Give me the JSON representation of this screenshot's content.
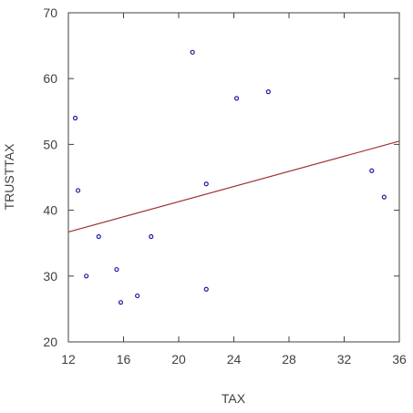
{
  "chart_data": {
    "type": "scatter",
    "title": "",
    "xlabel": "TAX",
    "ylabel": "TRUSTTAX",
    "xlim": [
      12,
      36
    ],
    "ylim": [
      20,
      70
    ],
    "xticks": [
      12,
      16,
      20,
      24,
      28,
      32,
      36
    ],
    "yticks": [
      20,
      30,
      40,
      50,
      60,
      70
    ],
    "grid": false,
    "legend": "none",
    "points": [
      {
        "x": 12.5,
        "y": 54
      },
      {
        "x": 12.7,
        "y": 43
      },
      {
        "x": 13.3,
        "y": 30
      },
      {
        "x": 14.2,
        "y": 36
      },
      {
        "x": 15.5,
        "y": 31
      },
      {
        "x": 15.8,
        "y": 26
      },
      {
        "x": 17.0,
        "y": 27
      },
      {
        "x": 18.0,
        "y": 36
      },
      {
        "x": 21.0,
        "y": 64
      },
      {
        "x": 22.0,
        "y": 44
      },
      {
        "x": 22.0,
        "y": 28
      },
      {
        "x": 24.2,
        "y": 57
      },
      {
        "x": 26.5,
        "y": 58
      },
      {
        "x": 34.0,
        "y": 46
      },
      {
        "x": 34.9,
        "y": 42
      }
    ],
    "fit_line": {
      "x": [
        12,
        36
      ],
      "y": [
        36.7,
        50.5
      ]
    },
    "colors": {
      "points": "#1a1aa0",
      "fit_line": "#a03030",
      "axes": "#404040"
    }
  }
}
